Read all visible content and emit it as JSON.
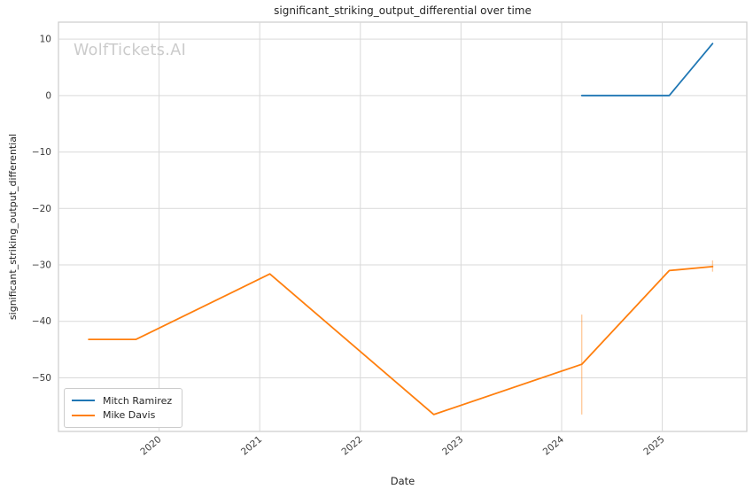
{
  "chart_data": {
    "type": "line",
    "title": "significant_striking_output_differential over time",
    "xlabel": "Date",
    "ylabel": "significant_striking_output_differential",
    "watermark": "WolfTickets.AI",
    "grid": true,
    "legend_position": "lower-left",
    "xlim": [
      2019.0,
      2025.84
    ],
    "ylim": [
      -59.5,
      13
    ],
    "x_ticks": [
      2020,
      2021,
      2022,
      2023,
      2024,
      2025
    ],
    "y_ticks": [
      10,
      0,
      -10,
      -20,
      -30,
      -40,
      -50
    ],
    "colors": {
      "grid": "#d9d9d9",
      "plot_border": "#cbcbcb",
      "tick_text": "#3b3b3b",
      "title_text": "#262626",
      "watermark_text": "#cbcbcb",
      "series_blue": "#1f77b4",
      "series_orange": "#ff7f0e"
    },
    "series": [
      {
        "name": "Mitch Ramirez",
        "color": "#1f77b4",
        "points": [
          [
            2024.2,
            0
          ],
          [
            2025.07,
            0
          ],
          [
            2025.5,
            9.2
          ]
        ],
        "error_bars": []
      },
      {
        "name": "Mike Davis",
        "color": "#ff7f0e",
        "points": [
          [
            2019.3,
            -43.2
          ],
          [
            2019.77,
            -43.2
          ],
          [
            2021.1,
            -31.6
          ],
          [
            2022.73,
            -56.5
          ],
          [
            2024.2,
            -47.6
          ],
          [
            2025.07,
            -31.0
          ],
          [
            2025.5,
            -30.3
          ]
        ],
        "error_bars": [
          {
            "x": 2024.2,
            "y_low": -56.5,
            "y_high": -38.8
          },
          {
            "x": 2025.5,
            "y_low": -31.2,
            "y_high": -29.2
          }
        ]
      }
    ]
  }
}
